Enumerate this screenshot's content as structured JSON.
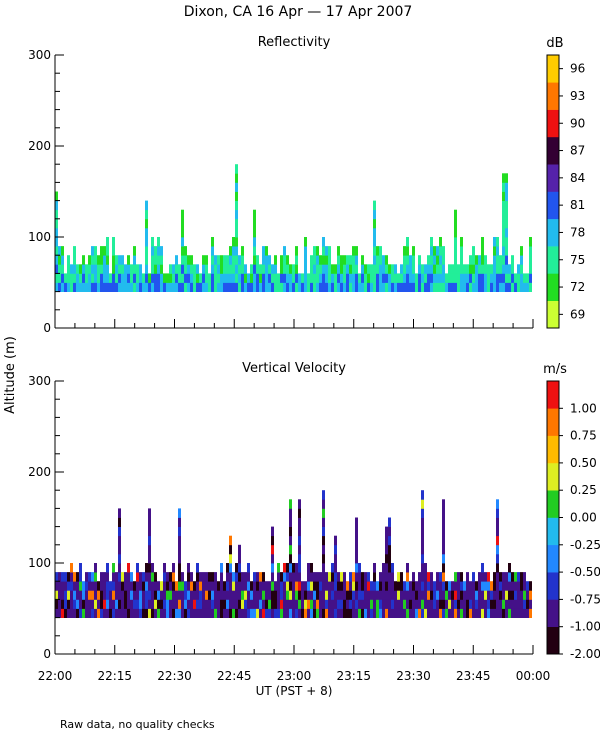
{
  "figure": {
    "title": "Dixon, CA 16 Apr — 17 Apr 2007",
    "ylabel": "Altitude (m)",
    "xlabel": "UT  (PST + 8)",
    "footnote": "Raw data, no quality checks",
    "x_ticks": [
      "22:00",
      "22:15",
      "22:30",
      "22:45",
      "23:00",
      "23:15",
      "23:30",
      "23:45",
      "00:00"
    ],
    "y_ticks": [
      0,
      100,
      200,
      300
    ]
  },
  "chart_data": [
    {
      "type": "heatmap",
      "title": "Reflectivity",
      "units": "dB",
      "xlabel": "UT  (PST + 8)",
      "ylabel": "Altitude (m)",
      "x_range_minutes": [
        0,
        120
      ],
      "ylim": [
        0,
        300
      ],
      "colorbar": {
        "colors": [
          "#ccff33",
          "#22dd22",
          "#22ee99",
          "#22bbee",
          "#2255ee",
          "#5522aa",
          "#330033",
          "#ee1111",
          "#ff7700",
          "#ffcc00"
        ],
        "tick_labels": [
          "69",
          "72",
          "75",
          "78",
          "81",
          "84",
          "87",
          "90",
          "93",
          "96"
        ]
      },
      "echo_base_m": 40,
      "typical_top_m": [
        60,
        100
      ],
      "max_echo_top_m": 180
    },
    {
      "type": "heatmap",
      "title": "Vertical Velocity",
      "units": "m/s",
      "xlabel": "UT  (PST + 8)",
      "ylabel": "Altitude (m)",
      "x_range_minutes": [
        0,
        120
      ],
      "ylim": [
        0,
        300
      ],
      "colorbar": {
        "colors": [
          "#220011",
          "#441188",
          "#2233cc",
          "#2288ff",
          "#22bbee",
          "#22cc22",
          "#ddee22",
          "#ffbb00",
          "#ff7700",
          "#ee1111"
        ],
        "tick_labels": [
          "-2.00",
          "-1.00",
          "-0.75",
          "-0.50",
          "-0.25",
          "0.00",
          "0.25",
          "0.50",
          "0.75",
          "1.00"
        ]
      },
      "echo_base_m": 40,
      "typical_top_m": [
        80,
        100
      ],
      "max_echo_top_m": 180
    }
  ]
}
